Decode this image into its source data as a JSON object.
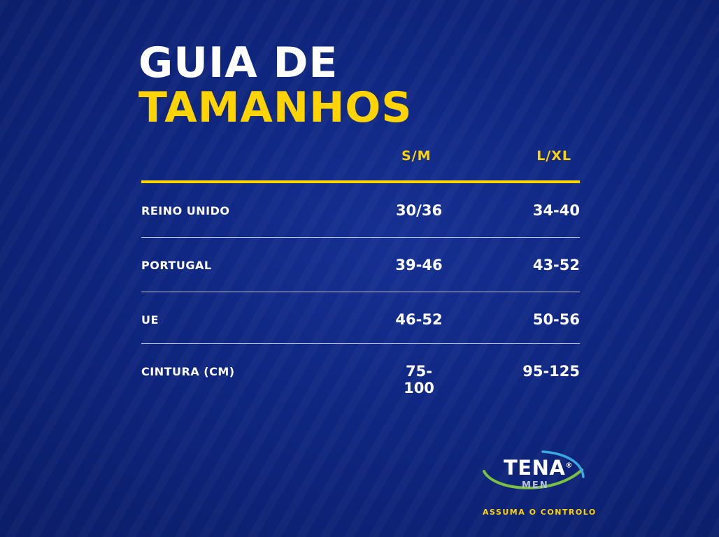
{
  "title": {
    "line1": "GUIA DE",
    "line2": "TAMANHOS"
  },
  "table": {
    "columns": [
      "S/M",
      "L/XL"
    ],
    "rows": [
      {
        "label": "REINO UNIDO",
        "values": [
          "30/36",
          "34-40"
        ]
      },
      {
        "label": "PORTUGAL",
        "values": [
          "39-46",
          "43-52"
        ]
      },
      {
        "label": "UE",
        "values": [
          "46-52",
          "50-56"
        ]
      },
      {
        "label": "CINTURA (CM)",
        "values": [
          "75-100",
          "95-125"
        ]
      }
    ]
  },
  "logo": {
    "brand": "TENA",
    "registered": "®",
    "sub": "MEN",
    "tagline": "ASSUMA O CONTROLO"
  },
  "colors": {
    "background": "#0f2680",
    "accent": "#ffd400",
    "text": "#ffffff",
    "swoosh_green": "#7bc043",
    "swoosh_blue": "#39a9e0"
  }
}
